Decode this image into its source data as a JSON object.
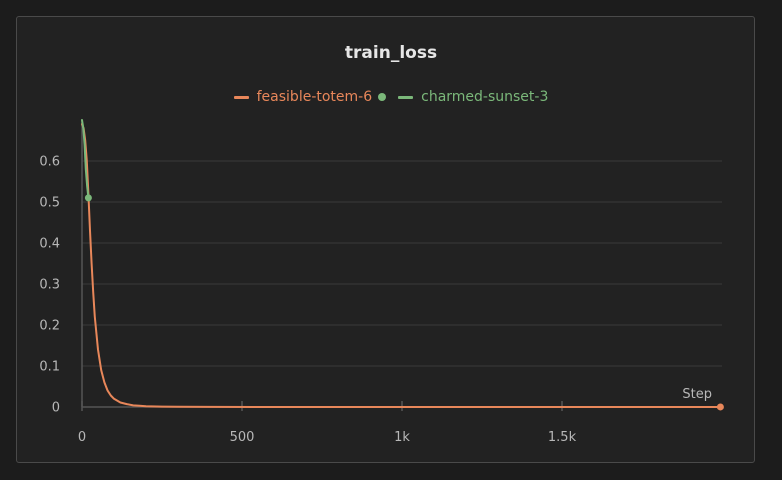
{
  "colors": {
    "background": "#1c1c1c",
    "panel": "#222222",
    "grid": "#3a3a3a",
    "axis": "#555555",
    "text": "#b8b8b8",
    "title": "#e6e6e6"
  },
  "chart_data": {
    "type": "line",
    "title": "train_loss",
    "xlabel": "Step",
    "ylabel": "",
    "xlim": [
      0,
      2000
    ],
    "ylim": [
      0,
      0.7
    ],
    "x_ticks": [
      {
        "value": 0,
        "label": "0"
      },
      {
        "value": 500,
        "label": "500"
      },
      {
        "value": 1000,
        "label": "1k"
      },
      {
        "value": 1500,
        "label": "1.5k"
      }
    ],
    "y_ticks": [
      {
        "value": 0,
        "label": "0"
      },
      {
        "value": 0.1,
        "label": "0.1"
      },
      {
        "value": 0.2,
        "label": "0.2"
      },
      {
        "value": 0.3,
        "label": "0.3"
      },
      {
        "value": 0.4,
        "label": "0.4"
      },
      {
        "value": 0.5,
        "label": "0.5"
      },
      {
        "value": 0.6,
        "label": "0.6"
      }
    ],
    "grid": true,
    "legend_position": "top-center",
    "series": [
      {
        "name": "feasible-totem-6",
        "color": "#e8875a",
        "x": [
          0,
          5,
          10,
          15,
          20,
          25,
          30,
          35,
          40,
          50,
          60,
          70,
          80,
          90,
          100,
          120,
          140,
          160,
          180,
          200,
          250,
          300,
          400,
          600,
          800,
          1000,
          1200,
          1400,
          1600,
          1800,
          1995
        ],
        "y": [
          0.69,
          0.68,
          0.65,
          0.6,
          0.52,
          0.43,
          0.35,
          0.28,
          0.22,
          0.14,
          0.09,
          0.06,
          0.04,
          0.028,
          0.02,
          0.011,
          0.007,
          0.004,
          0.003,
          0.002,
          0.001,
          0.0006,
          0.0003,
          0.0001,
          0.0001,
          0.0001,
          0.0001,
          0.0001,
          0.0001,
          0.0001,
          0.0001
        ],
        "end_marker": true
      },
      {
        "name": "charmed-sunset-3",
        "color": "#7bb87a",
        "x": [
          0,
          4,
          8,
          12,
          16,
          20
        ],
        "y": [
          0.7,
          0.68,
          0.64,
          0.58,
          0.54,
          0.51
        ],
        "end_marker": true
      }
    ]
  }
}
